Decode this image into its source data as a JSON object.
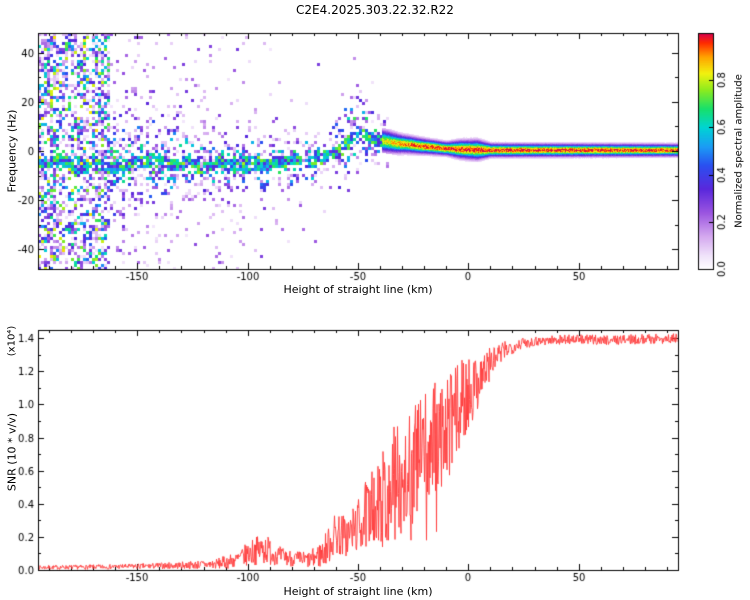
{
  "chart_data": [
    {
      "type": "heatmap",
      "title": "C2E4.2025.303.22.32.R22",
      "xlabel": "Height of straight line (km)",
      "ylabel": "Frequency (Hz)",
      "xlim": [
        -195,
        95
      ],
      "ylim": [
        -48,
        48
      ],
      "xticks": [
        -150,
        -100,
        -50,
        0,
        50
      ],
      "yticks": [
        -40,
        -20,
        0,
        20,
        40
      ],
      "seed": 42,
      "colormap": [
        [
          0.0,
          "#ffffff"
        ],
        [
          0.06,
          "#f0e2fa"
        ],
        [
          0.14,
          "#d4a8ef"
        ],
        [
          0.24,
          "#9b55e0"
        ],
        [
          0.34,
          "#5a28dc"
        ],
        [
          0.44,
          "#2a4ff0"
        ],
        [
          0.52,
          "#1b9cf5"
        ],
        [
          0.6,
          "#00d4d4"
        ],
        [
          0.68,
          "#17e06b"
        ],
        [
          0.76,
          "#8ceb1e"
        ],
        [
          0.83,
          "#f2f20f"
        ],
        [
          0.9,
          "#ffa300"
        ],
        [
          0.96,
          "#ff2a00"
        ],
        [
          1.0,
          "#d6004c"
        ]
      ],
      "colorbar": {
        "label": "Normalized spectral amplitude",
        "range": [
          0,
          1
        ],
        "tick_values": [
          0.0,
          0.2,
          0.4,
          0.6,
          0.8
        ],
        "tick_labels": [
          "0.0",
          "0.2",
          "0.4",
          "0.6",
          "0.8"
        ]
      },
      "ridge": [
        [
          -195,
          -4
        ],
        [
          -186,
          -3
        ],
        [
          -178,
          -6
        ],
        [
          -170,
          -4
        ],
        [
          -163,
          -7
        ],
        [
          -156,
          -5
        ],
        [
          -149,
          -4
        ],
        [
          -142,
          -2.5
        ],
        [
          -135,
          -5
        ],
        [
          -128,
          -4
        ],
        [
          -121,
          -6
        ],
        [
          -114,
          -4
        ],
        [
          -107,
          -5.5
        ],
        [
          -100,
          -3.5
        ],
        [
          -93,
          -5
        ],
        [
          -86,
          -4
        ],
        [
          -79,
          -3
        ],
        [
          -72,
          -3.5
        ],
        [
          -66,
          -2
        ],
        [
          -61,
          -0.5
        ],
        [
          -57,
          3
        ],
        [
          -53,
          7
        ],
        [
          -50,
          9.5
        ],
        [
          -47,
          7.5
        ],
        [
          -44,
          5.5
        ],
        [
          -41,
          4.5
        ],
        [
          -37,
          4
        ],
        [
          -32,
          3.2
        ],
        [
          -27,
          2.8
        ],
        [
          -22,
          2.2
        ],
        [
          -17,
          1.8
        ],
        [
          -11,
          1.2
        ],
        [
          -5,
          0.9
        ],
        [
          2,
          0.7
        ],
        [
          10,
          0.5
        ],
        [
          95,
          0.5
        ]
      ],
      "ridge_width": [
        [
          -38,
          2.6
        ],
        [
          -30,
          2.0
        ],
        [
          -20,
          1.7
        ],
        [
          -10,
          1.5
        ],
        [
          -4,
          2.0
        ],
        [
          4,
          2.2
        ],
        [
          10,
          1.5
        ],
        [
          95,
          1.35
        ]
      ],
      "ridge_peak": [
        [
          -38,
          0.8
        ],
        [
          -32,
          0.9
        ],
        [
          -24,
          0.95
        ],
        [
          0,
          0.98
        ],
        [
          95,
          0.97
        ]
      ],
      "noise_spread": [
        [
          -195,
          14
        ],
        [
          -162,
          12
        ],
        [
          -130,
          9
        ],
        [
          -95,
          7
        ],
        [
          -65,
          7
        ],
        [
          -54,
          11
        ],
        [
          -44,
          8
        ],
        [
          -36,
          4
        ]
      ]
    },
    {
      "type": "line",
      "color": "#ff3b3b",
      "xlabel": "Height of straight line (km)",
      "ylabel": "SNR (10 * v/v)",
      "y_exponent_label": "(x10⁴)",
      "xlim": [
        -195,
        95
      ],
      "ylim": [
        0,
        1.45
      ],
      "xticks": [
        -150,
        -100,
        -50,
        0,
        50
      ],
      "yticks": [
        0,
        0.2,
        0.4,
        0.6,
        0.8,
        1.0,
        1.2,
        1.4
      ],
      "ytick_labels": [
        "0.0",
        "0.2",
        "0.4",
        "0.6",
        "0.8",
        "1.0",
        "1.2",
        "1.4"
      ],
      "seed": 7,
      "envelope": [
        [
          -195,
          0.015,
          0.012
        ],
        [
          -170,
          0.018,
          0.014
        ],
        [
          -150,
          0.022,
          0.016
        ],
        [
          -130,
          0.028,
          0.022
        ],
        [
          -115,
          0.035,
          0.03
        ],
        [
          -105,
          0.06,
          0.05
        ],
        [
          -98,
          0.11,
          0.08
        ],
        [
          -92,
          0.13,
          0.1
        ],
        [
          -87,
          0.09,
          0.06
        ],
        [
          -80,
          0.07,
          0.05
        ],
        [
          -72,
          0.06,
          0.05
        ],
        [
          -66,
          0.1,
          0.09
        ],
        [
          -60,
          0.22,
          0.14
        ],
        [
          -55,
          0.2,
          0.13
        ],
        [
          -50,
          0.27,
          0.16
        ],
        [
          -46,
          0.33,
          0.22
        ],
        [
          -42,
          0.38,
          0.26
        ],
        [
          -38,
          0.44,
          0.3
        ],
        [
          -34,
          0.52,
          0.34
        ],
        [
          -30,
          0.58,
          0.38
        ],
        [
          -26,
          0.63,
          0.4
        ],
        [
          -22,
          0.68,
          0.4
        ],
        [
          -18,
          0.73,
          0.38
        ],
        [
          -14,
          0.78,
          0.36
        ],
        [
          -10,
          0.84,
          0.32
        ],
        [
          -6,
          0.93,
          0.3
        ],
        [
          -2,
          1.03,
          0.26
        ],
        [
          2,
          1.1,
          0.2
        ],
        [
          6,
          1.18,
          0.15
        ],
        [
          10,
          1.25,
          0.1
        ],
        [
          14,
          1.3,
          0.07
        ],
        [
          18,
          1.34,
          0.05
        ],
        [
          24,
          1.37,
          0.035
        ],
        [
          32,
          1.385,
          0.03
        ],
        [
          45,
          1.395,
          0.03
        ],
        [
          60,
          1.39,
          0.03
        ],
        [
          80,
          1.395,
          0.03
        ],
        [
          95,
          1.4,
          0.03
        ]
      ]
    }
  ]
}
